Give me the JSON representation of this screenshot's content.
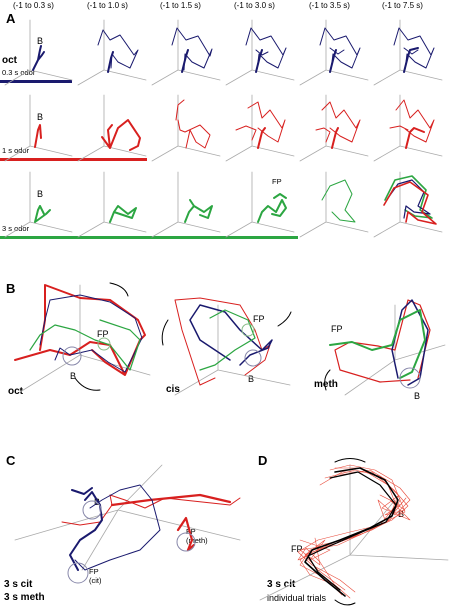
{
  "colors": {
    "oct": "#1a1a6e",
    "one_s": "#d8201f",
    "three_s": "#2ca642",
    "axis": "#999999",
    "trial": "#e84a3a"
  },
  "panel_a": {
    "letter": "A",
    "time_windows": [
      "(-1 to 0.3 s)",
      "(-1 to 1.0 s)",
      "(-1 to 1.5 s)",
      "(-1 to 3.0 s)",
      "(-1 to 3.5 s)",
      "(-1 to 7.5 s)"
    ],
    "odor_label": "oct",
    "row_labels": [
      "0.3 s odor",
      "1 s odor",
      "3 s odor"
    ],
    "baseline_label": "B",
    "fixed_point_label": "FP"
  },
  "panel_b": {
    "letter": "B",
    "odors": [
      "oct",
      "cis",
      "meth"
    ],
    "baseline_label": "B",
    "fixed_point_label": "FP"
  },
  "panel_c": {
    "letter": "C",
    "baseline_label": "B",
    "fp_meth": "FP",
    "fp_meth_sub": "(meth)",
    "fp_cit": "FP",
    "fp_cit_sub": "(cit)",
    "caption_1": "3 s cit",
    "caption_2": "3 s meth"
  },
  "panel_d": {
    "letter": "D",
    "baseline_label": "B",
    "fp_label": "FP",
    "caption_1": "3 s cit",
    "caption_2": "individual trials"
  }
}
